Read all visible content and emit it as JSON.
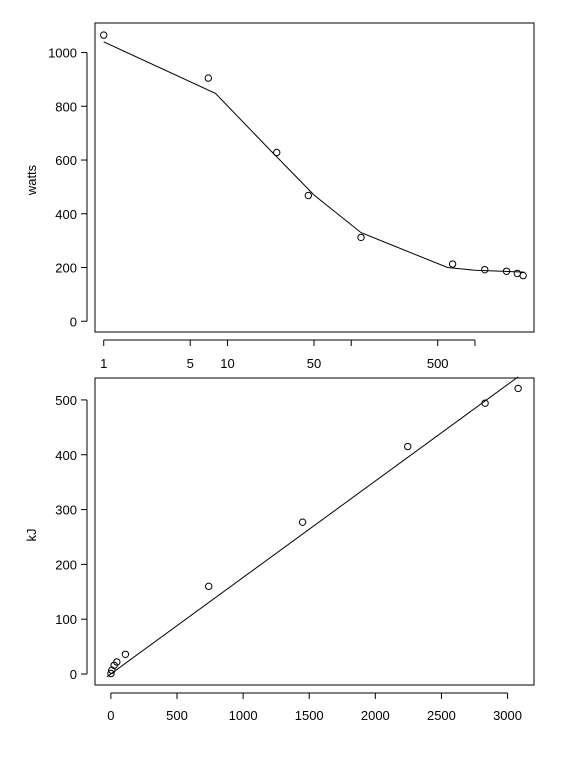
{
  "chart_data": [
    {
      "type": "scatter",
      "xlabel": "",
      "ylabel": "watts",
      "xscale": "log",
      "xlim": [
        0.85,
        3000
      ],
      "ylim": [
        -40,
        1110
      ],
      "xticks": [
        1,
        5,
        10,
        50,
        100,
        500,
        1000
      ],
      "xtick_labels": [
        "1",
        "5",
        "10",
        "50",
        "",
        "500",
        ""
      ],
      "yticks": [
        0,
        200,
        400,
        600,
        800,
        1000
      ],
      "ytick_labels": [
        "0",
        "200",
        "400",
        "600",
        "800",
        "1000"
      ],
      "points": [
        {
          "x": 1,
          "y": 1065
        },
        {
          "x": 7,
          "y": 905
        },
        {
          "x": 25,
          "y": 628
        },
        {
          "x": 45,
          "y": 468
        },
        {
          "x": 120,
          "y": 312
        },
        {
          "x": 660,
          "y": 213
        },
        {
          "x": 1200,
          "y": 192
        },
        {
          "x": 1800,
          "y": 186
        },
        {
          "x": 2200,
          "y": 178
        },
        {
          "x": 2450,
          "y": 170
        }
      ],
      "fit_line": [
        {
          "x": 1,
          "y": 1040
        },
        {
          "x": 8,
          "y": 848
        },
        {
          "x": 20,
          "y": 658
        },
        {
          "x": 50,
          "y": 470
        },
        {
          "x": 120,
          "y": 330
        },
        {
          "x": 600,
          "y": 200
        },
        {
          "x": 1000,
          "y": 190
        },
        {
          "x": 2500,
          "y": 183
        }
      ],
      "grid": false
    },
    {
      "type": "scatter",
      "xlabel": "",
      "ylabel": "kJ",
      "xlim": [
        -120,
        3200
      ],
      "ylim": [
        -20,
        540
      ],
      "xticks": [
        0,
        500,
        1000,
        1500,
        2000,
        2500,
        3000
      ],
      "xtick_labels": [
        "0",
        "500",
        "1000",
        "1500",
        "2000",
        "2500",
        "3000"
      ],
      "yticks": [
        0,
        100,
        200,
        300,
        400,
        500
      ],
      "ytick_labels": [
        "0",
        "100",
        "200",
        "300",
        "400",
        "500"
      ],
      "points": [
        {
          "x": 1,
          "y": 1
        },
        {
          "x": 7,
          "y": 7
        },
        {
          "x": 25,
          "y": 16
        },
        {
          "x": 45,
          "y": 22
        },
        {
          "x": 110,
          "y": 36
        },
        {
          "x": 740,
          "y": 160
        },
        {
          "x": 1450,
          "y": 277
        },
        {
          "x": 2245,
          "y": 415
        },
        {
          "x": 2830,
          "y": 494
        },
        {
          "x": 3080,
          "y": 521
        }
      ],
      "fit_line": [
        {
          "x": -30,
          "y": -5
        },
        {
          "x": 3080,
          "y": 542
        }
      ],
      "grid": false
    }
  ]
}
